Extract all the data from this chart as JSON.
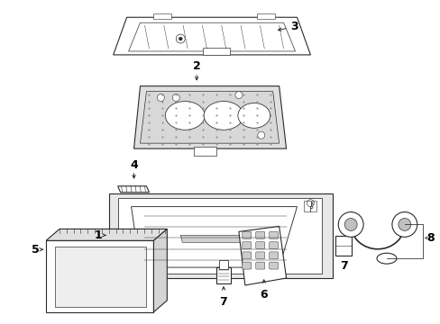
{
  "background_color": "#ffffff",
  "figsize": [
    4.89,
    3.6
  ],
  "dpi": 100,
  "line_color": "#2a2a2a",
  "text_color": "#000000",
  "font_size": 8
}
